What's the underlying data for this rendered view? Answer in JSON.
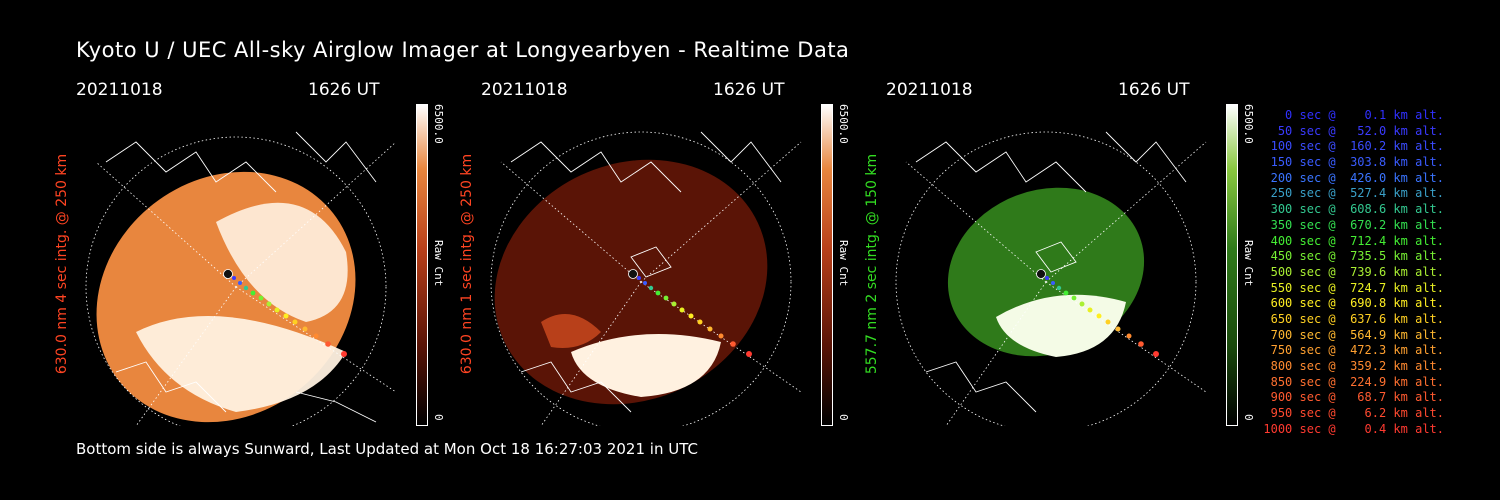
{
  "title": "Kyoto U / UEC All-sky Airglow Imager at Longyearbyen - Realtime Data",
  "footer": "Bottom side is always Sunward, Last Updated at Mon Oct 18 16:27:03 2021 in UTC",
  "panels": [
    {
      "date": "20211018",
      "time": "1626 UT",
      "label": "630.0 nm 4 sec intg. @ 250 km",
      "label_color": "#ff4422",
      "cbar_max": "6500.0",
      "cbar_unit": "Raw Cnt",
      "cbar_min": "0",
      "cmap": "red",
      "fill": "#e8863e",
      "bright": "#fff1e0"
    },
    {
      "date": "20211018",
      "time": "1626 UT",
      "label": "630.0 nm 1 sec intg. @ 250 km",
      "label_color": "#ff4422",
      "cbar_max": "6500.0",
      "cbar_unit": "Raw Cnt",
      "cbar_min": "0",
      "cmap": "red",
      "fill": "#5a1406",
      "bright": "#fff1e0"
    },
    {
      "date": "20211018",
      "time": "1626 UT",
      "label": "557.7 nm 2 sec intg. @ 150 km",
      "label_color": "#33dd22",
      "cbar_max": "6500.0",
      "cbar_unit": "Raw Cnt",
      "cbar_min": "0",
      "cmap": "green",
      "fill": "#2f7a1a",
      "bright": "#f4fbe6"
    }
  ],
  "legend": [
    {
      "text": "   0 sec @    0.1 km alt.",
      "color": "#3030ff"
    },
    {
      "text": "  50 sec @   52.0 km alt.",
      "color": "#3a3aff"
    },
    {
      "text": " 100 sec @  160.2 km alt.",
      "color": "#3a4cff"
    },
    {
      "text": " 150 sec @  303.8 km alt.",
      "color": "#3a5cff"
    },
    {
      "text": " 200 sec @  426.0 km alt.",
      "color": "#3a74ff"
    },
    {
      "text": " 250 sec @  527.4 km alt.",
      "color": "#3aa0c8"
    },
    {
      "text": " 300 sec @  608.6 km alt.",
      "color": "#33c890"
    },
    {
      "text": " 350 sec @  670.2 km alt.",
      "color": "#33e050"
    },
    {
      "text": " 400 sec @  712.4 km alt.",
      "color": "#44ee33"
    },
    {
      "text": " 450 sec @  735.5 km alt.",
      "color": "#77f033"
    },
    {
      "text": " 500 sec @  739.6 km alt.",
      "color": "#aaf033"
    },
    {
      "text": " 550 sec @  724.7 km alt.",
      "color": "#e8f022"
    },
    {
      "text": " 600 sec @  690.8 km alt.",
      "color": "#ffee22"
    },
    {
      "text": " 650 sec @  637.6 km alt.",
      "color": "#ffd022"
    },
    {
      "text": " 700 sec @  564.9 km alt.",
      "color": "#ffb830"
    },
    {
      "text": " 750 sec @  472.3 km alt.",
      "color": "#ffa030"
    },
    {
      "text": " 800 sec @  359.2 km alt.",
      "color": "#ff8a30"
    },
    {
      "text": " 850 sec @  224.9 km alt.",
      "color": "#ff7030"
    },
    {
      "text": " 900 sec @   68.7 km alt.",
      "color": "#ff5a30"
    },
    {
      "text": " 950 sec @    6.2 km alt.",
      "color": "#ff4a30"
    },
    {
      "text": "1000 sec @    0.4 km alt.",
      "color": "#ff3a30"
    }
  ]
}
